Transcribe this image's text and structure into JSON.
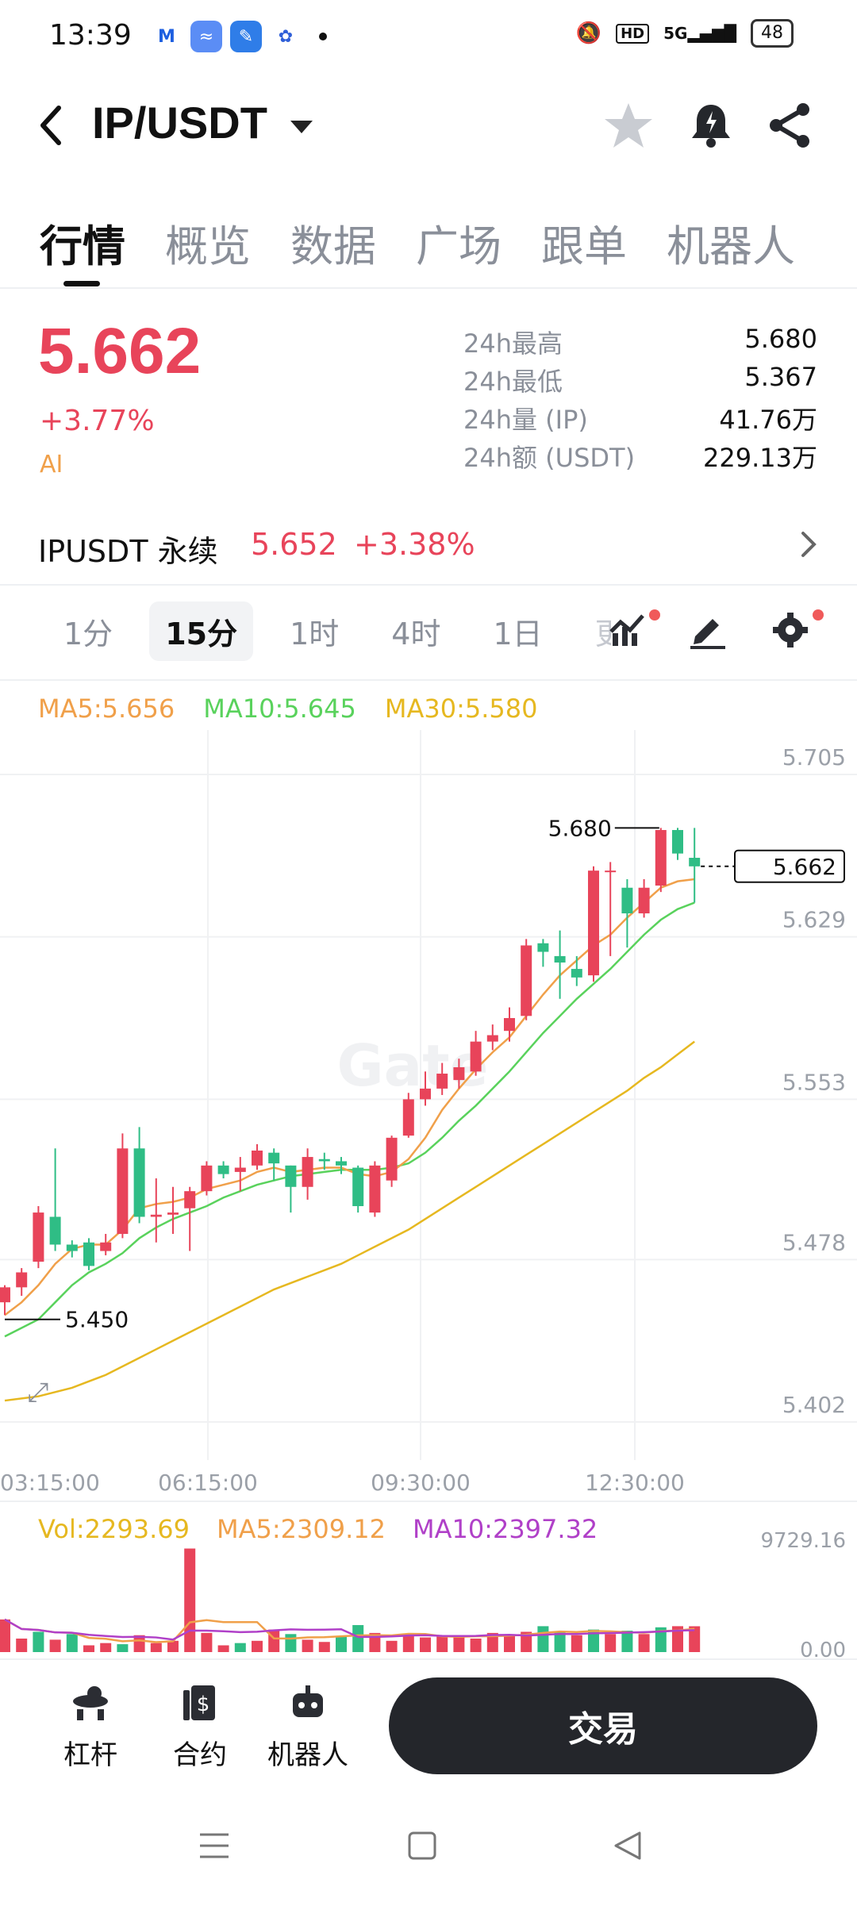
{
  "status_bar": {
    "time": "13:39",
    "battery": "48",
    "network": "5G",
    "hd": "HD"
  },
  "header": {
    "pair": "IP/USDT"
  },
  "tabs": [
    "行情",
    "概览",
    "数据",
    "广场",
    "跟单",
    "机器人"
  ],
  "ticker": {
    "last_price": "5.662",
    "change_pct": "+3.77%",
    "ai_tag": "AI",
    "stats": [
      {
        "label": "24h最高",
        "value": "5.680"
      },
      {
        "label": "24h最低",
        "value": "5.367"
      },
      {
        "label": "24h量 (IP)",
        "value": "41.76万"
      },
      {
        "label": "24h额 (USDT)",
        "value": "229.13万"
      }
    ]
  },
  "perpetual": {
    "name": "IPUSDT 永续",
    "price": "5.652",
    "change": "+3.38%"
  },
  "intervals": {
    "items": [
      "1分",
      "15分",
      "1时",
      "4时",
      "1日"
    ],
    "active": "15分",
    "overflow": "更"
  },
  "ma_legend": {
    "ma5": "MA5:5.656",
    "ma10": "MA10:5.645",
    "ma30": "MA30:5.580"
  },
  "colors": {
    "up": "#e8445a",
    "down": "#2fbd85",
    "ma5": "#f0a04a",
    "ma10": "#59d25c",
    "ma30": "#e6b820",
    "ma10_vol": "#b040c8"
  },
  "chart_data": {
    "type": "candlestick",
    "y_ticks": [
      "5.705",
      "5.629",
      "5.553",
      "5.478",
      "5.402"
    ],
    "ylim": [
      5.402,
      5.705
    ],
    "x_ticks": [
      "03:15:00",
      "06:15:00",
      "09:30:00",
      "12:30:00"
    ],
    "high_label": "5.680",
    "low_label": "5.450",
    "current_price_label": "5.662",
    "watermark": "Gate",
    "candles": [
      {
        "o": 5.458,
        "c": 5.465,
        "h": 5.466,
        "l": 5.452
      },
      {
        "o": 5.465,
        "c": 5.472,
        "h": 5.474,
        "l": 5.461
      },
      {
        "o": 5.477,
        "c": 5.5,
        "h": 5.503,
        "l": 5.474
      },
      {
        "o": 5.498,
        "c": 5.485,
        "h": 5.53,
        "l": 5.482
      },
      {
        "o": 5.485,
        "c": 5.482,
        "h": 5.487,
        "l": 5.479
      },
      {
        "o": 5.486,
        "c": 5.475,
        "h": 5.488,
        "l": 5.473
      },
      {
        "o": 5.482,
        "c": 5.486,
        "h": 5.49,
        "l": 5.48
      },
      {
        "o": 5.49,
        "c": 5.53,
        "h": 5.537,
        "l": 5.488
      },
      {
        "o": 5.53,
        "c": 5.498,
        "h": 5.54,
        "l": 5.495
      },
      {
        "o": 5.498,
        "c": 5.499,
        "h": 5.516,
        "l": 5.486
      },
      {
        "o": 5.499,
        "c": 5.5,
        "h": 5.512,
        "l": 5.49
      },
      {
        "o": 5.502,
        "c": 5.51,
        "h": 5.512,
        "l": 5.482
      },
      {
        "o": 5.51,
        "c": 5.522,
        "h": 5.524,
        "l": 5.508
      },
      {
        "o": 5.522,
        "c": 5.518,
        "h": 5.524,
        "l": 5.516
      },
      {
        "o": 5.519,
        "c": 5.521,
        "h": 5.526,
        "l": 5.51
      },
      {
        "o": 5.522,
        "c": 5.529,
        "h": 5.532,
        "l": 5.52
      },
      {
        "o": 5.528,
        "c": 5.523,
        "h": 5.53,
        "l": 5.515
      },
      {
        "o": 5.522,
        "c": 5.512,
        "h": 5.522,
        "l": 5.5
      },
      {
        "o": 5.512,
        "c": 5.526,
        "h": 5.53,
        "l": 5.506
      },
      {
        "o": 5.525,
        "c": 5.524,
        "h": 5.528,
        "l": 5.52
      },
      {
        "o": 5.524,
        "c": 5.522,
        "h": 5.526,
        "l": 5.518
      },
      {
        "o": 5.521,
        "c": 5.503,
        "h": 5.522,
        "l": 5.5
      },
      {
        "o": 5.5,
        "c": 5.522,
        "h": 5.524,
        "l": 5.498
      },
      {
        "o": 5.515,
        "c": 5.535,
        "h": 5.536,
        "l": 5.512
      },
      {
        "o": 5.536,
        "c": 5.553,
        "h": 5.556,
        "l": 5.535
      },
      {
        "o": 5.553,
        "c": 5.558,
        "h": 5.566,
        "l": 5.55
      },
      {
        "o": 5.558,
        "c": 5.565,
        "h": 5.57,
        "l": 5.555
      },
      {
        "o": 5.562,
        "c": 5.568,
        "h": 5.572,
        "l": 5.558
      },
      {
        "o": 5.566,
        "c": 5.58,
        "h": 5.585,
        "l": 5.564
      },
      {
        "o": 5.58,
        "c": 5.583,
        "h": 5.588,
        "l": 5.576
      },
      {
        "o": 5.585,
        "c": 5.591,
        "h": 5.596,
        "l": 5.58
      },
      {
        "o": 5.592,
        "c": 5.625,
        "h": 5.628,
        "l": 5.59
      },
      {
        "o": 5.626,
        "c": 5.622,
        "h": 5.628,
        "l": 5.615
      },
      {
        "o": 5.62,
        "c": 5.617,
        "h": 5.632,
        "l": 5.6
      },
      {
        "o": 5.614,
        "c": 5.61,
        "h": 5.62,
        "l": 5.606
      },
      {
        "o": 5.611,
        "c": 5.66,
        "h": 5.662,
        "l": 5.608
      },
      {
        "o": 5.66,
        "c": 5.66,
        "h": 5.664,
        "l": 5.62
      },
      {
        "o": 5.652,
        "c": 5.64,
        "h": 5.656,
        "l": 5.624
      },
      {
        "o": 5.64,
        "c": 5.652,
        "h": 5.656,
        "l": 5.638
      },
      {
        "o": 5.653,
        "c": 5.679,
        "h": 5.68,
        "l": 5.65
      },
      {
        "o": 5.679,
        "c": 5.668,
        "h": 5.68,
        "l": 5.665
      },
      {
        "o": 5.666,
        "c": 5.662,
        "h": 5.68,
        "l": 5.645
      }
    ],
    "ma5": [
      5.452,
      5.458,
      5.466,
      5.476,
      5.483,
      5.485,
      5.485,
      5.492,
      5.502,
      5.504,
      5.505,
      5.507,
      5.511,
      5.513,
      5.515,
      5.519,
      5.521,
      5.519,
      5.52,
      5.521,
      5.521,
      5.518,
      5.517,
      5.519,
      5.525,
      5.535,
      5.548,
      5.558,
      5.567,
      5.575,
      5.582,
      5.592,
      5.602,
      5.611,
      5.618,
      5.625,
      5.63,
      5.638,
      5.645,
      5.652,
      5.655,
      5.656
    ],
    "ma10": [
      5.442,
      5.446,
      5.45,
      5.458,
      5.466,
      5.472,
      5.476,
      5.481,
      5.488,
      5.493,
      5.497,
      5.5,
      5.503,
      5.507,
      5.51,
      5.513,
      5.515,
      5.517,
      5.518,
      5.519,
      5.52,
      5.52,
      5.52,
      5.521,
      5.523,
      5.528,
      5.535,
      5.543,
      5.55,
      5.558,
      5.566,
      5.575,
      5.584,
      5.592,
      5.6,
      5.607,
      5.614,
      5.622,
      5.63,
      5.637,
      5.642,
      5.645
    ],
    "ma30": [
      5.412,
      5.413,
      5.414,
      5.416,
      5.418,
      5.421,
      5.424,
      5.428,
      5.432,
      5.436,
      5.44,
      5.444,
      5.448,
      5.452,
      5.456,
      5.46,
      5.464,
      5.467,
      5.47,
      5.473,
      5.476,
      5.48,
      5.484,
      5.488,
      5.492,
      5.497,
      5.502,
      5.507,
      5.512,
      5.517,
      5.522,
      5.527,
      5.532,
      5.537,
      5.542,
      5.547,
      5.552,
      5.557,
      5.563,
      5.568,
      5.574,
      5.58
    ],
    "volume": {
      "legend": "Vol:2293.69",
      "ma5_legend": "MA5:2309.12",
      "ma10_legend": "MA10:2397.32",
      "y_ticks": [
        "9729.16",
        "0.00"
      ],
      "ylim": [
        0,
        9729.16
      ],
      "values": [
        2900,
        1200,
        1800,
        1100,
        1600,
        600,
        800,
        700,
        1500,
        800,
        1000,
        9200,
        1700,
        600,
        800,
        1000,
        2000,
        1600,
        1100,
        900,
        1400,
        2400,
        1700,
        1000,
        1600,
        1300,
        1400,
        1500,
        1200,
        1700,
        1500,
        1800,
        2300,
        1800,
        1500,
        2000,
        1600,
        1900,
        1600,
        2200,
        2300,
        2293.69
      ],
      "up": [
        true,
        true,
        false,
        true,
        false,
        true,
        true,
        false,
        true,
        true,
        true,
        true,
        true,
        true,
        false,
        true,
        true,
        false,
        true,
        true,
        false,
        false,
        true,
        true,
        true,
        true,
        true,
        true,
        true,
        true,
        true,
        true,
        false,
        false,
        true,
        false,
        true,
        false,
        true,
        false,
        true,
        true
      ]
    }
  },
  "bottom_bar": {
    "items": [
      "杠杆",
      "合约",
      "机器人"
    ],
    "trade_label": "交易"
  }
}
